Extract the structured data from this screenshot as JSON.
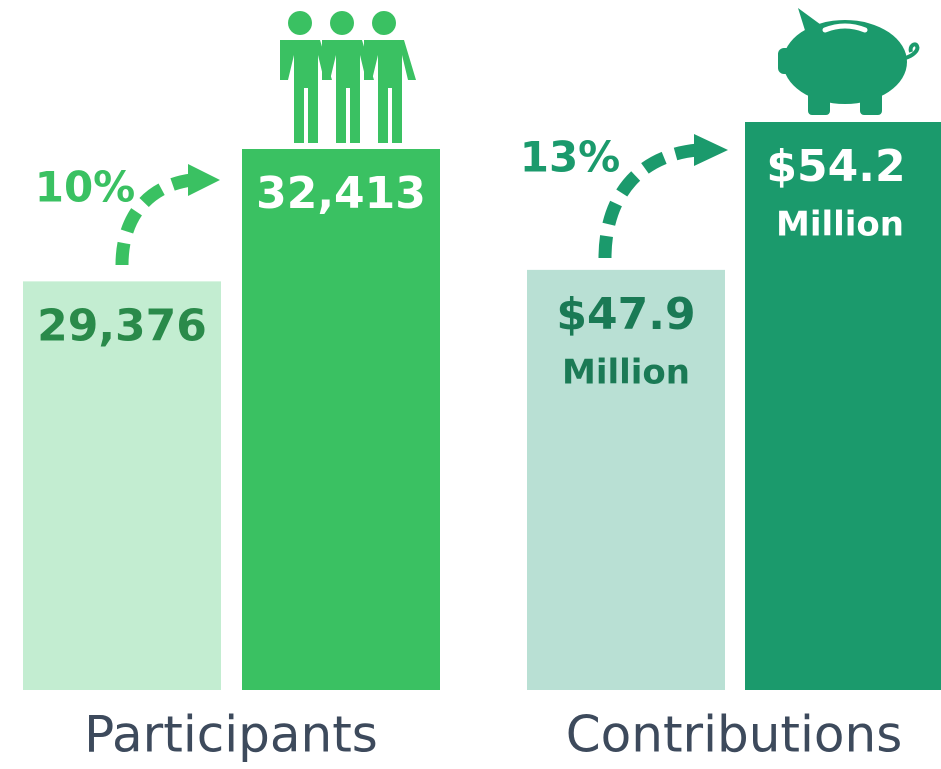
{
  "chart_data": [
    {
      "type": "bar",
      "title": "Participants",
      "values": [
        29376,
        32413
      ],
      "value_labels": [
        "29,376",
        "32,413"
      ],
      "colors": [
        "#c3edd1",
        "#3ac162"
      ],
      "label_colors": [
        "#2a8a4a",
        "#ffffff"
      ],
      "annotation": "10%",
      "annotation_color": "#3ac162",
      "ylim": [
        20000,
        32413
      ]
    },
    {
      "type": "bar",
      "title": "Contributions",
      "values": [
        47.9,
        54.2
      ],
      "value_labels": [
        "$47.9",
        "$54.2"
      ],
      "value_unit": "Million",
      "colors": [
        "#b9e0d4",
        "#1b9a6c"
      ],
      "label_colors": [
        "#1a7a55",
        "#ffffff"
      ],
      "annotation": "13%",
      "annotation_color": "#1b9a6c",
      "ylim": [
        30,
        54.2
      ]
    }
  ]
}
